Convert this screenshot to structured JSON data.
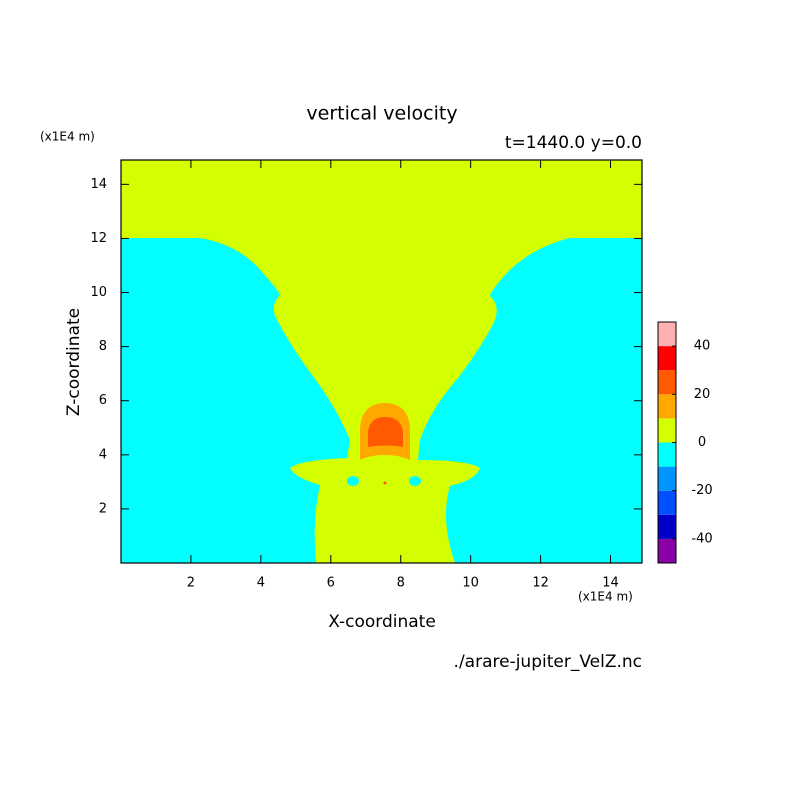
{
  "chart_data": {
    "type": "contour",
    "title": "vertical velocity",
    "subtitle": "t=1440.0 y=0.0",
    "x_label": "X-coordinate",
    "y_label": "Z-coordinate",
    "x_unit": "(x1E4 m)",
    "y_unit": "(x1E4 m)",
    "source": "./arare-jupiter_VelZ.nc",
    "xlim": [
      0,
      14.9
    ],
    "ylim": [
      0,
      14.9
    ],
    "xticks": [
      2,
      4,
      6,
      8,
      10,
      12,
      14
    ],
    "yticks": [
      2,
      4,
      6,
      8,
      10,
      12,
      14
    ],
    "colorbar": {
      "levels": [
        -50,
        -40,
        -30,
        -20,
        -10,
        0,
        10,
        20,
        30,
        40,
        50
      ],
      "colors": [
        "#8a00a8",
        "#0000c8",
        "#0050ff",
        "#0096ff",
        "#00ffff",
        "#d4ff00",
        "#ffa800",
        "#ff5a00",
        "#ff0000",
        "#ffb0b0"
      ],
      "ticks": [
        -40,
        -20,
        0,
        20,
        40
      ]
    }
  }
}
